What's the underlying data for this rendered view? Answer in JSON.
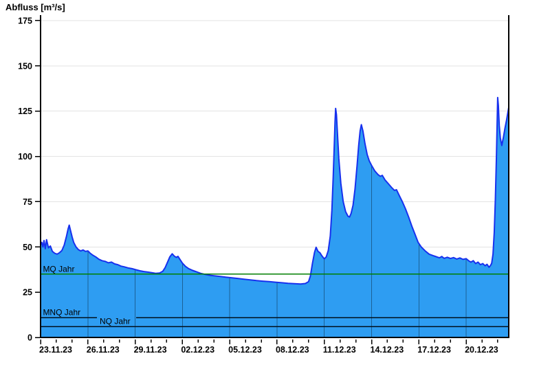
{
  "title": "Abfluss [m³/s]",
  "chart_data": {
    "type": "area",
    "title": "Abfluss [m³/s]",
    "ylabel": "Abfluss [m³/s]",
    "xlabel": "",
    "legend": "none",
    "grid": "horizontal light (under fill), vertical dark (inside fill only)",
    "ylim": [
      0,
      178
    ],
    "y_ticks": [
      0,
      25,
      50,
      75,
      100,
      125,
      150,
      175
    ],
    "x_unit": "days since 23.11.23 00:00",
    "x_range_days": [
      0,
      29.7
    ],
    "x_axis": {
      "minor_tick_every_days": 1,
      "major_ticks": [
        {
          "day": 0,
          "label": "23.11.23"
        },
        {
          "day": 3,
          "label": "26.11.23"
        },
        {
          "day": 6,
          "label": "29.11.23"
        },
        {
          "day": 9,
          "label": "02.12.23"
        },
        {
          "day": 12,
          "label": "05.12.23"
        },
        {
          "day": 15,
          "label": "08.12.23"
        },
        {
          "day": 18,
          "label": "11.12.23"
        },
        {
          "day": 21,
          "label": "14.12.23"
        },
        {
          "day": 24,
          "label": "17.12.23"
        },
        {
          "day": 27,
          "label": "20.12.23"
        }
      ]
    },
    "reference_lines": [
      {
        "id": "mq-jahr",
        "label": "MQ Jahr",
        "value": 35,
        "color": "#007f00",
        "label_day": 0.15
      },
      {
        "id": "mnq-jahr",
        "label": "MNQ Jahr",
        "value": 11,
        "color": "#00111f",
        "label_day": 0.15,
        "gap_days": [
          3.58,
          6.06
        ]
      },
      {
        "id": "nq-jahr",
        "label": "NQ Jahr",
        "value": 6,
        "color": "#00111f",
        "label_day": 3.75
      }
    ],
    "colors": {
      "fill": "#2e9df2",
      "line": "#1730ee",
      "grid_h": "#e3e3e3",
      "grid_v": "rgba(0,0,0,0.38)",
      "axis": "#000000",
      "text": "#000000"
    },
    "series": [
      {
        "name": "Abfluss",
        "points": [
          [
            0,
            51
          ],
          [
            0.08,
            52.5
          ],
          [
            0.15,
            50
          ],
          [
            0.22,
            53.5
          ],
          [
            0.3,
            49
          ],
          [
            0.38,
            54
          ],
          [
            0.5,
            49.5
          ],
          [
            0.62,
            50.5
          ],
          [
            0.75,
            47.5
          ],
          [
            0.9,
            46.5
          ],
          [
            1.05,
            46
          ],
          [
            1.2,
            46.8
          ],
          [
            1.35,
            48
          ],
          [
            1.5,
            51
          ],
          [
            1.65,
            56
          ],
          [
            1.75,
            60
          ],
          [
            1.82,
            62
          ],
          [
            1.9,
            59
          ],
          [
            2,
            55.5
          ],
          [
            2.1,
            52.5
          ],
          [
            2.25,
            50
          ],
          [
            2.4,
            48.5
          ],
          [
            2.55,
            47.8
          ],
          [
            2.7,
            48.3
          ],
          [
            2.85,
            47.5
          ],
          [
            3,
            47.8
          ],
          [
            3.15,
            46.5
          ],
          [
            3.3,
            45.5
          ],
          [
            3.5,
            44.5
          ],
          [
            3.7,
            43.2
          ],
          [
            3.9,
            42.4
          ],
          [
            4.1,
            42
          ],
          [
            4.3,
            41.2
          ],
          [
            4.5,
            41.6
          ],
          [
            4.7,
            40.6
          ],
          [
            4.9,
            40.2
          ],
          [
            5.1,
            39.4
          ],
          [
            5.3,
            39
          ],
          [
            5.55,
            38.4
          ],
          [
            5.8,
            38
          ],
          [
            6.05,
            37.4
          ],
          [
            6.3,
            36.8
          ],
          [
            6.55,
            36.4
          ],
          [
            6.8,
            36.1
          ],
          [
            7.05,
            35.8
          ],
          [
            7.3,
            35.4
          ],
          [
            7.55,
            35.6
          ],
          [
            7.75,
            36.5
          ],
          [
            7.9,
            38.5
          ],
          [
            8.05,
            41.5
          ],
          [
            8.2,
            44.5
          ],
          [
            8.35,
            46.2
          ],
          [
            8.5,
            44.8
          ],
          [
            8.62,
            44.2
          ],
          [
            8.72,
            44.8
          ],
          [
            8.85,
            43
          ],
          [
            9,
            41
          ],
          [
            9.2,
            39.2
          ],
          [
            9.4,
            38
          ],
          [
            9.65,
            37
          ],
          [
            9.9,
            36.2
          ],
          [
            10.15,
            35.4
          ],
          [
            10.45,
            34.8
          ],
          [
            10.75,
            34.3
          ],
          [
            11.05,
            34
          ],
          [
            11.4,
            33.7
          ],
          [
            11.75,
            33.3
          ],
          [
            12.1,
            33
          ],
          [
            12.5,
            32.6
          ],
          [
            12.9,
            32.2
          ],
          [
            13.3,
            31.8
          ],
          [
            13.7,
            31.4
          ],
          [
            14.1,
            31.1
          ],
          [
            14.5,
            30.8
          ],
          [
            14.9,
            30.5
          ],
          [
            15.3,
            30.2
          ],
          [
            15.7,
            29.9
          ],
          [
            16.1,
            29.7
          ],
          [
            16.5,
            29.5
          ],
          [
            16.8,
            29.8
          ],
          [
            17,
            30.8
          ],
          [
            17.12,
            34
          ],
          [
            17.25,
            41
          ],
          [
            17.38,
            47
          ],
          [
            17.48,
            49.8
          ],
          [
            17.6,
            47.5
          ],
          [
            17.72,
            46.8
          ],
          [
            17.85,
            45
          ],
          [
            18,
            43.4
          ],
          [
            18.12,
            44.5
          ],
          [
            18.25,
            48
          ],
          [
            18.38,
            56
          ],
          [
            18.48,
            70
          ],
          [
            18.56,
            88
          ],
          [
            18.63,
            106
          ],
          [
            18.68,
            119
          ],
          [
            18.72,
            126.5
          ],
          [
            18.77,
            123
          ],
          [
            18.83,
            113
          ],
          [
            18.92,
            99
          ],
          [
            19.05,
            85
          ],
          [
            19.2,
            75
          ],
          [
            19.35,
            69.5
          ],
          [
            19.5,
            67
          ],
          [
            19.6,
            66.5
          ],
          [
            19.7,
            68.5
          ],
          [
            19.82,
            73
          ],
          [
            19.95,
            82
          ],
          [
            20.08,
            95
          ],
          [
            20.18,
            106
          ],
          [
            20.27,
            114
          ],
          [
            20.35,
            117.5
          ],
          [
            20.45,
            114
          ],
          [
            20.58,
            107
          ],
          [
            20.72,
            101
          ],
          [
            20.85,
            97.5
          ],
          [
            21,
            95
          ],
          [
            21.2,
            92
          ],
          [
            21.4,
            90
          ],
          [
            21.55,
            89
          ],
          [
            21.68,
            89.5
          ],
          [
            21.85,
            87
          ],
          [
            22.05,
            85
          ],
          [
            22.3,
            82.5
          ],
          [
            22.45,
            81.2
          ],
          [
            22.58,
            81.6
          ],
          [
            22.75,
            78.5
          ],
          [
            22.95,
            75
          ],
          [
            23.15,
            71
          ],
          [
            23.35,
            66.5
          ],
          [
            23.55,
            61.5
          ],
          [
            23.75,
            57
          ],
          [
            23.95,
            52.5
          ],
          [
            24.15,
            50
          ],
          [
            24.4,
            47.8
          ],
          [
            24.65,
            46
          ],
          [
            24.9,
            45.2
          ],
          [
            25.1,
            44.6
          ],
          [
            25.3,
            44
          ],
          [
            25.45,
            44.7
          ],
          [
            25.6,
            43.7
          ],
          [
            25.8,
            44.3
          ],
          [
            26,
            43.6
          ],
          [
            26.2,
            44.1
          ],
          [
            26.4,
            43.3
          ],
          [
            26.6,
            43.9
          ],
          [
            26.8,
            43.1
          ],
          [
            27,
            43.5
          ],
          [
            27.15,
            42.4
          ],
          [
            27.3,
            41.6
          ],
          [
            27.45,
            42.4
          ],
          [
            27.6,
            40.8
          ],
          [
            27.75,
            41.6
          ],
          [
            27.9,
            40.2
          ],
          [
            28.05,
            40.8
          ],
          [
            28.2,
            39.6
          ],
          [
            28.32,
            40.4
          ],
          [
            28.45,
            38.8
          ],
          [
            28.55,
            39.8
          ],
          [
            28.62,
            41
          ],
          [
            28.7,
            46
          ],
          [
            28.78,
            58
          ],
          [
            28.85,
            76
          ],
          [
            28.92,
            100
          ],
          [
            28.97,
            122
          ],
          [
            29,
            132.5
          ],
          [
            29.04,
            128
          ],
          [
            29.1,
            117
          ],
          [
            29.17,
            110
          ],
          [
            29.26,
            106
          ],
          [
            29.36,
            110.5
          ],
          [
            29.46,
            115.5
          ],
          [
            29.56,
            120
          ],
          [
            29.64,
            124
          ],
          [
            29.7,
            127
          ]
        ]
      }
    ]
  }
}
